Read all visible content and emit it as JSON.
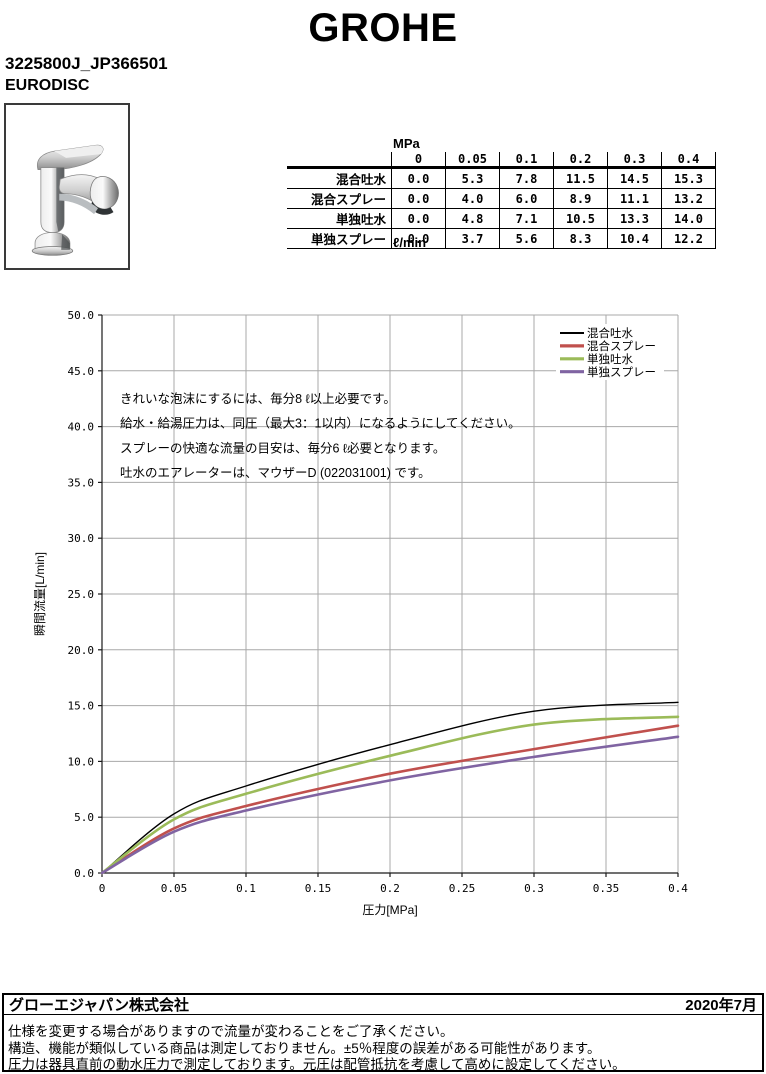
{
  "header": {
    "brand": "GROHE",
    "product_code": "3225800J_JP366501",
    "product_name": "EURODISC"
  },
  "flow_table": {
    "pressure_unit": "MPa",
    "flow_unit": "ℓ/min",
    "pressures": [
      "0",
      "0.05",
      "0.1",
      "0.2",
      "0.3",
      "0.4"
    ],
    "rows": [
      {
        "label": "混合吐水",
        "values": [
          "0.0",
          "5.3",
          "7.8",
          "11.5",
          "14.5",
          "15.3"
        ]
      },
      {
        "label": "混合スプレー",
        "values": [
          "0.0",
          "4.0",
          "6.0",
          "8.9",
          "11.1",
          "13.2"
        ]
      },
      {
        "label": "単独吐水",
        "values": [
          "0.0",
          "4.8",
          "7.1",
          "10.5",
          "13.3",
          "14.0"
        ]
      },
      {
        "label": "単独スプレー",
        "values": [
          "0.0",
          "3.7",
          "5.6",
          "8.3",
          "10.4",
          "12.2"
        ]
      }
    ]
  },
  "chart_data": {
    "type": "line",
    "x": [
      0,
      0.05,
      0.1,
      0.2,
      0.3,
      0.4
    ],
    "series": [
      {
        "name": "混合吐水",
        "color": "#000000",
        "line_width": 1.4,
        "values": [
          0,
          5.3,
          7.8,
          11.5,
          14.5,
          15.3
        ]
      },
      {
        "name": "混合スプレー",
        "color": "#C0504D",
        "line_width": 2.6,
        "values": [
          0,
          4.0,
          6.0,
          8.9,
          11.1,
          13.2
        ]
      },
      {
        "name": "単独吐水",
        "color": "#9BBB59",
        "line_width": 2.6,
        "values": [
          0,
          4.8,
          7.1,
          10.5,
          13.3,
          14.0
        ]
      },
      {
        "name": "単独スプレー",
        "color": "#8064A2",
        "line_width": 2.6,
        "values": [
          0,
          3.7,
          5.6,
          8.3,
          10.4,
          12.2
        ]
      }
    ],
    "xlabel": "圧力[MPa]",
    "ylabel": "瞬間流量[L/min]",
    "xlim": [
      0,
      0.4
    ],
    "ylim": [
      0,
      50
    ],
    "x_ticks": [
      0,
      0.05,
      0.1,
      0.15,
      0.2,
      0.25,
      0.3,
      0.35,
      0.4
    ],
    "x_tick_labels": [
      "0",
      "0.05",
      "0.1",
      "0.15",
      "0.2",
      "0.25",
      "0.3",
      "0.35",
      "0.4"
    ],
    "y_tick_step": 5,
    "y_tick_labels": [
      "0.0",
      "5.0",
      "10.0",
      "15.0",
      "20.0",
      "25.0",
      "30.0",
      "35.0",
      "40.0",
      "45.0",
      "50.0"
    ],
    "grid": true,
    "legend_position": "top-right",
    "annotations": [
      "きれいな泡沫にするには、毎分8 ℓ以上必要です。",
      "給水・給湯圧力は、同圧（最大3：1以内）になるようにしてください。",
      "スプレーの快適な流量の目安は、毎分6 ℓ必要となります。",
      "吐水のエアレーターは、マウザーD (022031001) です。"
    ],
    "grid_color": "#A8A8A8",
    "axis_color": "#1A1A1A"
  },
  "footer": {
    "company": "グローエジャパン株式会社",
    "date": "2020年7月",
    "notes": [
      "仕様を変更する場合がありますので流量が変わることをご了承ください。",
      "構造、機能が類似している商品は測定しておりません。±5％程度の誤差がある可能性があります。",
      "圧力は器具直前の動水圧力で測定しております。元圧は配管抵抗を考慮して高めに設定してください。"
    ]
  }
}
